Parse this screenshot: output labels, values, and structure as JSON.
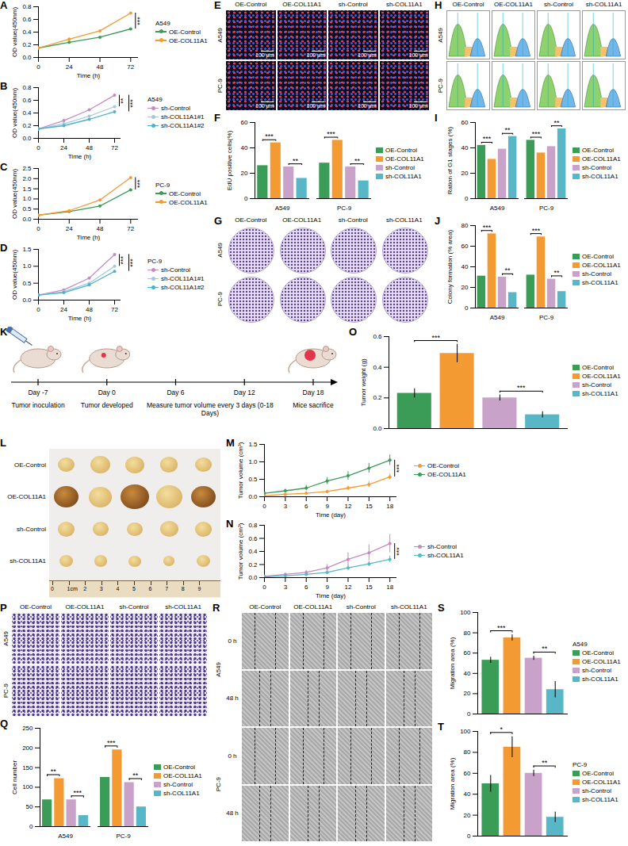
{
  "chart_data": [
    {
      "panel": "A",
      "type": "line",
      "title": "A549",
      "x": [
        0,
        24,
        48,
        72
      ],
      "xlim": [
        0,
        78
      ],
      "xticks": [
        0,
        24,
        48,
        72
      ],
      "ylim": [
        0,
        0.8
      ],
      "yticks": [
        {
          "value": 0,
          "label": "0.0"
        },
        0.2,
        0.4,
        0.6,
        0.8
      ],
      "x_label": "Time (h)",
      "y_label": "OD value(450nm)",
      "marker": "circle",
      "legend": "right",
      "series": [
        {
          "name": "OE-Control",
          "color": "#3b9c57",
          "values": [
            0.15,
            0.24,
            0.32,
            0.45
          ]
        },
        {
          "name": "OE-COL11A1",
          "color": "#f39b32",
          "values": [
            0.15,
            0.29,
            0.42,
            0.7
          ]
        }
      ],
      "annotations": [
        {
          "between": [
            "OE-Control",
            "OE-COL11A1"
          ],
          "label": "***"
        }
      ]
    },
    {
      "panel": "B",
      "type": "line",
      "title": "A549",
      "x": [
        0,
        24,
        48,
        72
      ],
      "xlim": [
        0,
        78
      ],
      "xticks": [
        0,
        24,
        48,
        72
      ],
      "ylim": [
        0,
        0.8
      ],
      "yticks": [
        {
          "value": 0,
          "label": "0.0"
        },
        0.2,
        0.4,
        0.6,
        0.8
      ],
      "x_label": "Time (h)",
      "y_label": "OD value(450nm)",
      "marker": "circle",
      "legend": "right",
      "series": [
        {
          "name": "sh-Control",
          "color": "#c58bbf",
          "values": [
            0.15,
            0.28,
            0.45,
            0.68
          ]
        },
        {
          "name": "sh-COL11A1#1",
          "color": "#9ccbe3",
          "values": [
            0.15,
            0.23,
            0.35,
            0.5
          ]
        },
        {
          "name": "sh-COL11A1#2",
          "color": "#4fb0c6",
          "values": [
            0.15,
            0.2,
            0.3,
            0.42
          ]
        }
      ],
      "annotations": [
        {
          "between": [
            "sh-Control",
            "sh-COL11A1#1"
          ],
          "label": "**"
        },
        {
          "between": [
            "sh-Control",
            "sh-COL11A1#2"
          ],
          "label": "***"
        }
      ]
    },
    {
      "panel": "C",
      "type": "line",
      "title": "PC-9",
      "x": [
        0,
        24,
        48,
        72
      ],
      "xlim": [
        0,
        78
      ],
      "xticks": [
        0,
        24,
        48,
        72
      ],
      "ylim": [
        0,
        2.5
      ],
      "yticks": [
        {
          "value": 0,
          "label": "0.0"
        },
        0.5,
        {
          "value": 1,
          "label": "1.0"
        },
        1.5,
        {
          "value": 2,
          "label": "2.0"
        },
        2.5
      ],
      "x_label": "Time (h)",
      "y_label": "OD value(450nm)",
      "marker": "circle",
      "legend": "right",
      "series": [
        {
          "name": "OE-Control",
          "color": "#3b9c57",
          "values": [
            0.2,
            0.38,
            0.65,
            1.45
          ]
        },
        {
          "name": "OE-COL11A1",
          "color": "#f39b32",
          "values": [
            0.2,
            0.42,
            0.95,
            2.05
          ]
        }
      ],
      "annotations": [
        {
          "between": [
            "OE-Control",
            "OE-COL11A1"
          ],
          "label": "***"
        }
      ]
    },
    {
      "panel": "D",
      "type": "line",
      "title": "PC-9",
      "x": [
        0,
        24,
        48,
        72
      ],
      "xlim": [
        0,
        78
      ],
      "xticks": [
        0,
        24,
        48,
        72
      ],
      "ylim": [
        0,
        1.5
      ],
      "yticks": [
        {
          "value": 0,
          "label": "0.0"
        },
        0.5,
        {
          "value": 1,
          "label": "1.0"
        },
        1.5
      ],
      "x_label": "Time (h)",
      "y_label": "OD value(450nm)",
      "marker": "circle",
      "legend": "right",
      "series": [
        {
          "name": "sh-Control",
          "color": "#c58bbf",
          "values": [
            0.15,
            0.3,
            0.65,
            1.35
          ]
        },
        {
          "name": "sh-COL11A1#1",
          "color": "#9ccbe3",
          "values": [
            0.15,
            0.25,
            0.5,
            1.0
          ]
        },
        {
          "name": "sh-COL11A1#2",
          "color": "#4fb0c6",
          "values": [
            0.15,
            0.22,
            0.45,
            0.85
          ]
        }
      ],
      "annotations": [
        {
          "between": [
            "sh-Control",
            "sh-COL11A1#1"
          ],
          "label": "***"
        },
        {
          "between": [
            "sh-Control",
            "sh-COL11A1#2"
          ],
          "label": "***"
        }
      ]
    },
    {
      "panel": "F",
      "type": "bar",
      "categories": [
        "A549",
        "PC-9"
      ],
      "ylim": [
        0,
        60
      ],
      "yticks": [
        0,
        20,
        40,
        60
      ],
      "y_label": "EdU positive cells(%)",
      "legend": "right",
      "series": [
        {
          "name": "OE-Control",
          "color": "#3b9c57",
          "values": [
            26,
            28
          ]
        },
        {
          "name": "OE-COL11A1",
          "color": "#f39b32",
          "values": [
            44,
            46
          ]
        },
        {
          "name": "sh-Control",
          "color": "#c8a2c8",
          "values": [
            25,
            25
          ]
        },
        {
          "name": "sh-COL11A1",
          "color": "#58b7c6",
          "values": [
            16,
            14
          ]
        }
      ],
      "annotations": [
        {
          "category": "A549",
          "between": [
            "OE-Control",
            "OE-COL11A1"
          ],
          "label": "***"
        },
        {
          "category": "A549",
          "between": [
            "sh-Control",
            "sh-COL11A1"
          ],
          "label": "**"
        },
        {
          "category": "PC-9",
          "between": [
            "OE-Control",
            "OE-COL11A1"
          ],
          "label": "***"
        },
        {
          "category": "PC-9",
          "between": [
            "sh-Control",
            "sh-COL11A1"
          ],
          "label": "**"
        }
      ]
    },
    {
      "panel": "I",
      "type": "bar",
      "categories": [
        "A549",
        "PC-9"
      ],
      "ylim": [
        0,
        60
      ],
      "yticks": [
        0,
        20,
        40,
        60
      ],
      "y_label": "Ration of G1 stages (%)",
      "legend": "right",
      "series": [
        {
          "name": "OE-Control",
          "color": "#3b9c57",
          "values": [
            42,
            46
          ]
        },
        {
          "name": "OE-COL11A1",
          "color": "#f39b32",
          "values": [
            31,
            36
          ]
        },
        {
          "name": "sh-Control",
          "color": "#c8a2c8",
          "values": [
            39,
            41
          ]
        },
        {
          "name": "sh-COL11A1",
          "color": "#58b7c6",
          "values": [
            49,
            55
          ]
        }
      ],
      "annotations": [
        {
          "category": "A549",
          "between": [
            "OE-Control",
            "OE-COL11A1"
          ],
          "label": "***"
        },
        {
          "category": "A549",
          "between": [
            "sh-Control",
            "sh-COL11A1"
          ],
          "label": "**"
        },
        {
          "category": "PC-9",
          "between": [
            "OE-Control",
            "OE-COL11A1"
          ],
          "label": "***"
        },
        {
          "category": "PC-9",
          "between": [
            "sh-Control",
            "sh-COL11A1"
          ],
          "label": "**"
        }
      ]
    },
    {
      "panel": "J",
      "type": "bar",
      "categories": [
        "A549",
        "PC-9"
      ],
      "ylim": [
        0,
        80
      ],
      "yticks": [
        0,
        20,
        40,
        60,
        80
      ],
      "y_label": "Colony formation (% area)",
      "legend": "right",
      "series": [
        {
          "name": "OE-Control",
          "color": "#3b9c57",
          "values": [
            31,
            32
          ]
        },
        {
          "name": "OE-COL11A1",
          "color": "#f39b32",
          "values": [
            72,
            69
          ]
        },
        {
          "name": "sh-Control",
          "color": "#c8a2c8",
          "values": [
            30,
            28
          ]
        },
        {
          "name": "sh-COL11A1",
          "color": "#58b7c6",
          "values": [
            15,
            16
          ]
        }
      ],
      "annotations": [
        {
          "category": "A549",
          "between": [
            "OE-Control",
            "OE-COL11A1"
          ],
          "label": "***"
        },
        {
          "category": "A549",
          "between": [
            "sh-Control",
            "sh-COL11A1"
          ],
          "label": "**"
        },
        {
          "category": "PC-9",
          "between": [
            "OE-Control",
            "OE-COL11A1"
          ],
          "label": "***"
        },
        {
          "category": "PC-9",
          "between": [
            "sh-Control",
            "sh-COL11A1"
          ],
          "label": "**"
        }
      ]
    },
    {
      "panel": "O",
      "type": "bar",
      "categories": [
        "OE-Control",
        "OE-COL11A1",
        "sh-Control",
        "sh-COL11A1"
      ],
      "values": [
        0.23,
        0.49,
        0.2,
        0.09
      ],
      "errors": [
        0.03,
        0.06,
        0.02,
        0.02
      ],
      "colors": [
        "#3b9c57",
        "#f39b32",
        "#c8a2c8",
        "#58b7c6"
      ],
      "ylim": [
        0,
        0.6
      ],
      "yticks": [
        {
          "value": 0,
          "label": "0.0"
        },
        0.2,
        0.4,
        0.6
      ],
      "y_label": "Tumor weight (g)",
      "tick_labels": "y",
      "legend": "right",
      "annotations": [
        {
          "between": [
            "OE-Control",
            "OE-COL11A1"
          ],
          "label": "***"
        },
        {
          "between": [
            "sh-Control",
            "sh-COL11A1"
          ],
          "label": "***"
        }
      ]
    },
    {
      "panel": "M",
      "type": "line",
      "x": [
        0,
        3,
        6,
        9,
        12,
        15,
        18
      ],
      "xlim": [
        0,
        19
      ],
      "xticks": [
        0,
        3,
        6,
        9,
        12,
        15,
        18
      ],
      "ylim": [
        0,
        1.5
      ],
      "yticks": [
        {
          "value": 0,
          "label": "0.0"
        },
        0.5,
        {
          "value": 1,
          "label": "1.0"
        },
        1.5
      ],
      "x_label": "Time (day)",
      "y_label": "Tumor volume (cm³)",
      "marker": "circle",
      "legend": "right",
      "series": [
        {
          "name": "OE-Control",
          "color": "#f39b32",
          "values": [
            0.03,
            0.07,
            0.1,
            0.15,
            0.25,
            0.35,
            0.57
          ],
          "errors": [
            0.01,
            0.02,
            0.03,
            0.04,
            0.06,
            0.08,
            0.08
          ]
        },
        {
          "name": "OE-COL11A1",
          "color": "#3b9c57",
          "values": [
            0.1,
            0.17,
            0.25,
            0.45,
            0.6,
            0.82,
            1.05
          ],
          "errors": [
            0.03,
            0.05,
            0.08,
            0.1,
            0.12,
            0.14,
            0.15
          ]
        }
      ],
      "annotations": [
        {
          "between": [
            "OE-Control",
            "OE-COL11A1"
          ],
          "label": "***"
        }
      ]
    },
    {
      "panel": "N",
      "type": "line",
      "x": [
        0,
        3,
        6,
        9,
        12,
        15,
        18
      ],
      "xlim": [
        0,
        19
      ],
      "xticks": [
        0,
        3,
        6,
        9,
        12,
        15,
        18
      ],
      "ylim": [
        0,
        0.8
      ],
      "yticks": [
        {
          "value": 0,
          "label": "0.0"
        },
        0.2,
        0.4,
        0.6,
        0.8
      ],
      "x_label": "Time (day)",
      "y_label": "Tumor volume (cm³)",
      "marker": "circle",
      "legend": "right",
      "series": [
        {
          "name": "sh-Control",
          "color": "#c58bbf",
          "values": [
            0.02,
            0.05,
            0.08,
            0.15,
            0.28,
            0.38,
            0.52
          ],
          "errors": [
            0.01,
            0.02,
            0.03,
            0.05,
            0.1,
            0.12,
            0.14
          ]
        },
        {
          "name": "sh-COL11A1",
          "color": "#58b7c6",
          "values": [
            0.01,
            0.03,
            0.05,
            0.08,
            0.15,
            0.21,
            0.28
          ],
          "errors": [
            0.01,
            0.01,
            0.02,
            0.03,
            0.04,
            0.04,
            0.05
          ]
        }
      ],
      "annotations": [
        {
          "between": [
            "sh-Control",
            "sh-COL11A1"
          ],
          "label": "***"
        }
      ]
    },
    {
      "panel": "Q",
      "type": "bar",
      "categories": [
        "A549",
        "PC-9"
      ],
      "ylim": [
        0,
        250
      ],
      "yticks": [
        0,
        50,
        100,
        150,
        200,
        250
      ],
      "y_label": "Cell number",
      "legend": "right",
      "series": [
        {
          "name": "OE-Control",
          "color": "#3b9c57",
          "values": [
            68,
            125
          ]
        },
        {
          "name": "OE-COL11A1",
          "color": "#f39b32",
          "values": [
            122,
            195
          ]
        },
        {
          "name": "sh-Control",
          "color": "#c8a2c8",
          "values": [
            68,
            112
          ]
        },
        {
          "name": "sh-COL11A1",
          "color": "#58b7c6",
          "values": [
            28,
            50
          ]
        }
      ],
      "annotations": [
        {
          "category": "A549",
          "between": [
            "OE-Control",
            "OE-COL11A1"
          ],
          "label": "**"
        },
        {
          "category": "A549",
          "between": [
            "sh-Control",
            "sh-COL11A1"
          ],
          "label": "***"
        },
        {
          "category": "PC-9",
          "between": [
            "OE-Control",
            "OE-COL11A1"
          ],
          "label": "***"
        },
        {
          "category": "PC-9",
          "between": [
            "sh-Control",
            "sh-COL11A1"
          ],
          "label": "**"
        }
      ]
    },
    {
      "panel": "S",
      "type": "bar",
      "title": "A549",
      "categories": [
        "OE-Control",
        "OE-COL11A1",
        "sh-Control",
        "sh-COL11A1"
      ],
      "values": [
        53,
        75,
        55,
        24
      ],
      "errors": [
        3,
        3,
        2,
        8
      ],
      "colors": [
        "#3b9c57",
        "#f39b32",
        "#c8a2c8",
        "#58b7c6"
      ],
      "ylim": [
        0,
        100
      ],
      "yticks": [
        0,
        20,
        40,
        60,
        80,
        100
      ],
      "y_label": "Migration area (%)",
      "tick_labels": "y",
      "legend": "right",
      "annotations": [
        {
          "between": [
            "OE-Control",
            "OE-COL11A1"
          ],
          "label": "***"
        },
        {
          "between": [
            "sh-Control",
            "sh-COL11A1"
          ],
          "label": "**"
        }
      ]
    },
    {
      "panel": "T",
      "type": "bar",
      "title": "PC-9",
      "categories": [
        "OE-Control",
        "OE-COL11A1",
        "sh-Control",
        "sh-COL11A1"
      ],
      "values": [
        50,
        85,
        60,
        18
      ],
      "errors": [
        8,
        10,
        3,
        5
      ],
      "colors": [
        "#3b9c57",
        "#f39b32",
        "#c8a2c8",
        "#58b7c6"
      ],
      "ylim": [
        0,
        100
      ],
      "yticks": [
        0,
        20,
        40,
        60,
        80,
        100
      ],
      "y_label": "Migration area (%)",
      "tick_labels": "y",
      "legend": "right",
      "annotations": [
        {
          "between": [
            "OE-Control",
            "OE-COL11A1"
          ],
          "label": "*"
        },
        {
          "between": [
            "sh-Control",
            "sh-COL11A1"
          ],
          "label": "**"
        }
      ]
    }
  ],
  "image_panels": [
    {
      "panel": "E",
      "type": "fluorescence",
      "columns": [
        "OE-Control",
        "OE-COL11A1",
        "sh-Control",
        "sh-COL11A1"
      ],
      "rows": [
        "A549",
        "PC-9"
      ],
      "scale_bar": "100 μm"
    },
    {
      "panel": "G",
      "type": "colony",
      "columns": [
        "OE-Control",
        "OE-COL11A1",
        "sh-Control",
        "sh-COL11A1"
      ],
      "rows": [
        "A549",
        "PC-9"
      ]
    },
    {
      "panel": "H",
      "type": "flow_cytometry",
      "columns": [
        "OE-Control",
        "OE-COL11A1",
        "sh-Control",
        "sh-COL11A1"
      ],
      "rows": [
        "A549",
        "PC-9"
      ]
    },
    {
      "panel": "L",
      "type": "tumor_photo",
      "rows": [
        "OE-Control",
        "OE-COL11A1",
        "sh-Control",
        "sh-COL11A1"
      ],
      "ruler": [
        "0",
        "1cm",
        "2",
        "3",
        "4",
        "5",
        "6",
        "7",
        "8",
        "9"
      ]
    },
    {
      "panel": "P",
      "type": "transwell",
      "columns": [
        "OE-Control",
        "OE-COL11A1",
        "sh-Control",
        "sh-COL11A1"
      ],
      "rows": [
        "A549",
        "PC-9"
      ]
    },
    {
      "panel": "R",
      "type": "wound_healing",
      "columns": [
        "OE-Control",
        "OE-COL11A1",
        "sh-Control",
        "sh-COL11A1"
      ],
      "rows": [
        "A549",
        "PC-9"
      ],
      "times": [
        "0 h",
        "48 h"
      ]
    }
  ],
  "timeline": {
    "panel": "K",
    "days": [
      "Day -7",
      "Day 0",
      "Day 6",
      "Day 12",
      "Day 18"
    ],
    "events": [
      "Tumor inoculation",
      "Tumor developed",
      "Measure tumor volume every 3 days (0-18 Days)",
      "Mice sacrifice"
    ]
  }
}
